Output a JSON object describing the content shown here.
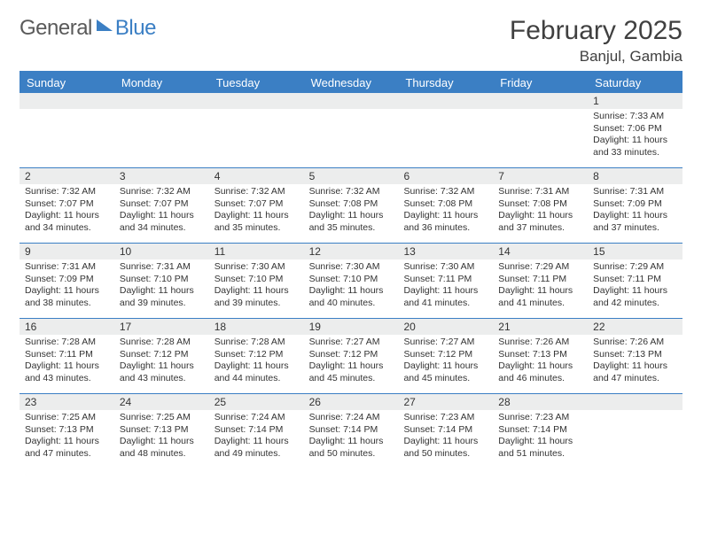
{
  "logo": {
    "text1": "General",
    "text2": "Blue"
  },
  "title": "February 2025",
  "location": "Banjul, Gambia",
  "colors": {
    "brand_blue": "#3b7fc4",
    "header_text": "#404040",
    "grey_text": "#5a5a5a",
    "row_band": "#eceded",
    "divider": "#3b7fc4"
  },
  "day_headers": [
    "Sunday",
    "Monday",
    "Tuesday",
    "Wednesday",
    "Thursday",
    "Friday",
    "Saturday"
  ],
  "weeks": [
    [
      {
        "n": "",
        "sunrise": "",
        "sunset": "",
        "daylight": ""
      },
      {
        "n": "",
        "sunrise": "",
        "sunset": "",
        "daylight": ""
      },
      {
        "n": "",
        "sunrise": "",
        "sunset": "",
        "daylight": ""
      },
      {
        "n": "",
        "sunrise": "",
        "sunset": "",
        "daylight": ""
      },
      {
        "n": "",
        "sunrise": "",
        "sunset": "",
        "daylight": ""
      },
      {
        "n": "",
        "sunrise": "",
        "sunset": "",
        "daylight": ""
      },
      {
        "n": "1",
        "sunrise": "7:33 AM",
        "sunset": "7:06 PM",
        "daylight": "11 hours and 33 minutes."
      }
    ],
    [
      {
        "n": "2",
        "sunrise": "7:32 AM",
        "sunset": "7:07 PM",
        "daylight": "11 hours and 34 minutes."
      },
      {
        "n": "3",
        "sunrise": "7:32 AM",
        "sunset": "7:07 PM",
        "daylight": "11 hours and 34 minutes."
      },
      {
        "n": "4",
        "sunrise": "7:32 AM",
        "sunset": "7:07 PM",
        "daylight": "11 hours and 35 minutes."
      },
      {
        "n": "5",
        "sunrise": "7:32 AM",
        "sunset": "7:08 PM",
        "daylight": "11 hours and 35 minutes."
      },
      {
        "n": "6",
        "sunrise": "7:32 AM",
        "sunset": "7:08 PM",
        "daylight": "11 hours and 36 minutes."
      },
      {
        "n": "7",
        "sunrise": "7:31 AM",
        "sunset": "7:08 PM",
        "daylight": "11 hours and 37 minutes."
      },
      {
        "n": "8",
        "sunrise": "7:31 AM",
        "sunset": "7:09 PM",
        "daylight": "11 hours and 37 minutes."
      }
    ],
    [
      {
        "n": "9",
        "sunrise": "7:31 AM",
        "sunset": "7:09 PM",
        "daylight": "11 hours and 38 minutes."
      },
      {
        "n": "10",
        "sunrise": "7:31 AM",
        "sunset": "7:10 PM",
        "daylight": "11 hours and 39 minutes."
      },
      {
        "n": "11",
        "sunrise": "7:30 AM",
        "sunset": "7:10 PM",
        "daylight": "11 hours and 39 minutes."
      },
      {
        "n": "12",
        "sunrise": "7:30 AM",
        "sunset": "7:10 PM",
        "daylight": "11 hours and 40 minutes."
      },
      {
        "n": "13",
        "sunrise": "7:30 AM",
        "sunset": "7:11 PM",
        "daylight": "11 hours and 41 minutes."
      },
      {
        "n": "14",
        "sunrise": "7:29 AM",
        "sunset": "7:11 PM",
        "daylight": "11 hours and 41 minutes."
      },
      {
        "n": "15",
        "sunrise": "7:29 AM",
        "sunset": "7:11 PM",
        "daylight": "11 hours and 42 minutes."
      }
    ],
    [
      {
        "n": "16",
        "sunrise": "7:28 AM",
        "sunset": "7:11 PM",
        "daylight": "11 hours and 43 minutes."
      },
      {
        "n": "17",
        "sunrise": "7:28 AM",
        "sunset": "7:12 PM",
        "daylight": "11 hours and 43 minutes."
      },
      {
        "n": "18",
        "sunrise": "7:28 AM",
        "sunset": "7:12 PM",
        "daylight": "11 hours and 44 minutes."
      },
      {
        "n": "19",
        "sunrise": "7:27 AM",
        "sunset": "7:12 PM",
        "daylight": "11 hours and 45 minutes."
      },
      {
        "n": "20",
        "sunrise": "7:27 AM",
        "sunset": "7:12 PM",
        "daylight": "11 hours and 45 minutes."
      },
      {
        "n": "21",
        "sunrise": "7:26 AM",
        "sunset": "7:13 PM",
        "daylight": "11 hours and 46 minutes."
      },
      {
        "n": "22",
        "sunrise": "7:26 AM",
        "sunset": "7:13 PM",
        "daylight": "11 hours and 47 minutes."
      }
    ],
    [
      {
        "n": "23",
        "sunrise": "7:25 AM",
        "sunset": "7:13 PM",
        "daylight": "11 hours and 47 minutes."
      },
      {
        "n": "24",
        "sunrise": "7:25 AM",
        "sunset": "7:13 PM",
        "daylight": "11 hours and 48 minutes."
      },
      {
        "n": "25",
        "sunrise": "7:24 AM",
        "sunset": "7:14 PM",
        "daylight": "11 hours and 49 minutes."
      },
      {
        "n": "26",
        "sunrise": "7:24 AM",
        "sunset": "7:14 PM",
        "daylight": "11 hours and 50 minutes."
      },
      {
        "n": "27",
        "sunrise": "7:23 AM",
        "sunset": "7:14 PM",
        "daylight": "11 hours and 50 minutes."
      },
      {
        "n": "28",
        "sunrise": "7:23 AM",
        "sunset": "7:14 PM",
        "daylight": "11 hours and 51 minutes."
      },
      {
        "n": "",
        "sunrise": "",
        "sunset": "",
        "daylight": ""
      }
    ]
  ],
  "labels": {
    "sunrise": "Sunrise: ",
    "sunset": "Sunset: ",
    "daylight": "Daylight: "
  }
}
